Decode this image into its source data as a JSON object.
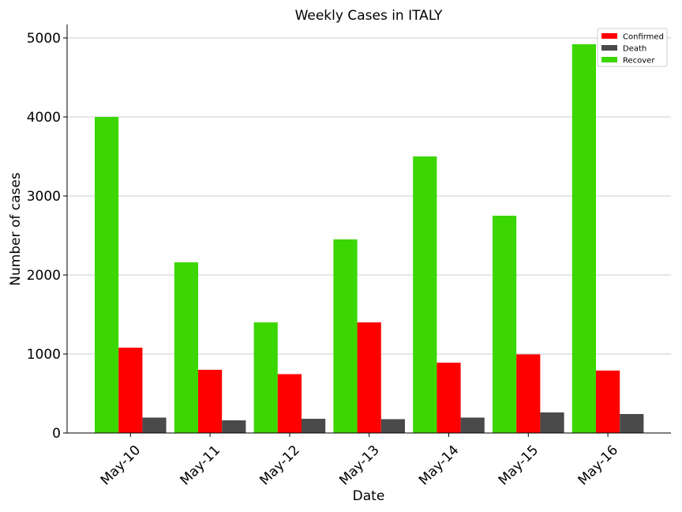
{
  "chart_data": {
    "type": "bar",
    "title": "Weekly Cases in ITALY",
    "xlabel": "Date",
    "ylabel": "Number of cases",
    "categories": [
      "May-10",
      "May-11",
      "May-12",
      "May-13",
      "May-14",
      "May-15",
      "May-16"
    ],
    "series": [
      {
        "name": "Recover",
        "color": "#3cd600",
        "values": [
          4000,
          2160,
          1400,
          2450,
          3500,
          2750,
          4920
        ]
      },
      {
        "name": "Confirmed",
        "color": "#ff0000",
        "values": [
          1080,
          800,
          745,
          1400,
          890,
          995,
          790
        ]
      },
      {
        "name": "Death",
        "color": "#4a4a4a",
        "values": [
          195,
          160,
          180,
          175,
          195,
          260,
          240
        ]
      }
    ],
    "legend_order": [
      "Confirmed",
      "Death",
      "Recover"
    ],
    "legend_position": "top-right",
    "ylim": [
      0,
      5170
    ],
    "yticks": [
      0,
      1000,
      2000,
      3000,
      4000,
      5000
    ],
    "grid": "horizontal",
    "xtick_rotation": 45
  }
}
